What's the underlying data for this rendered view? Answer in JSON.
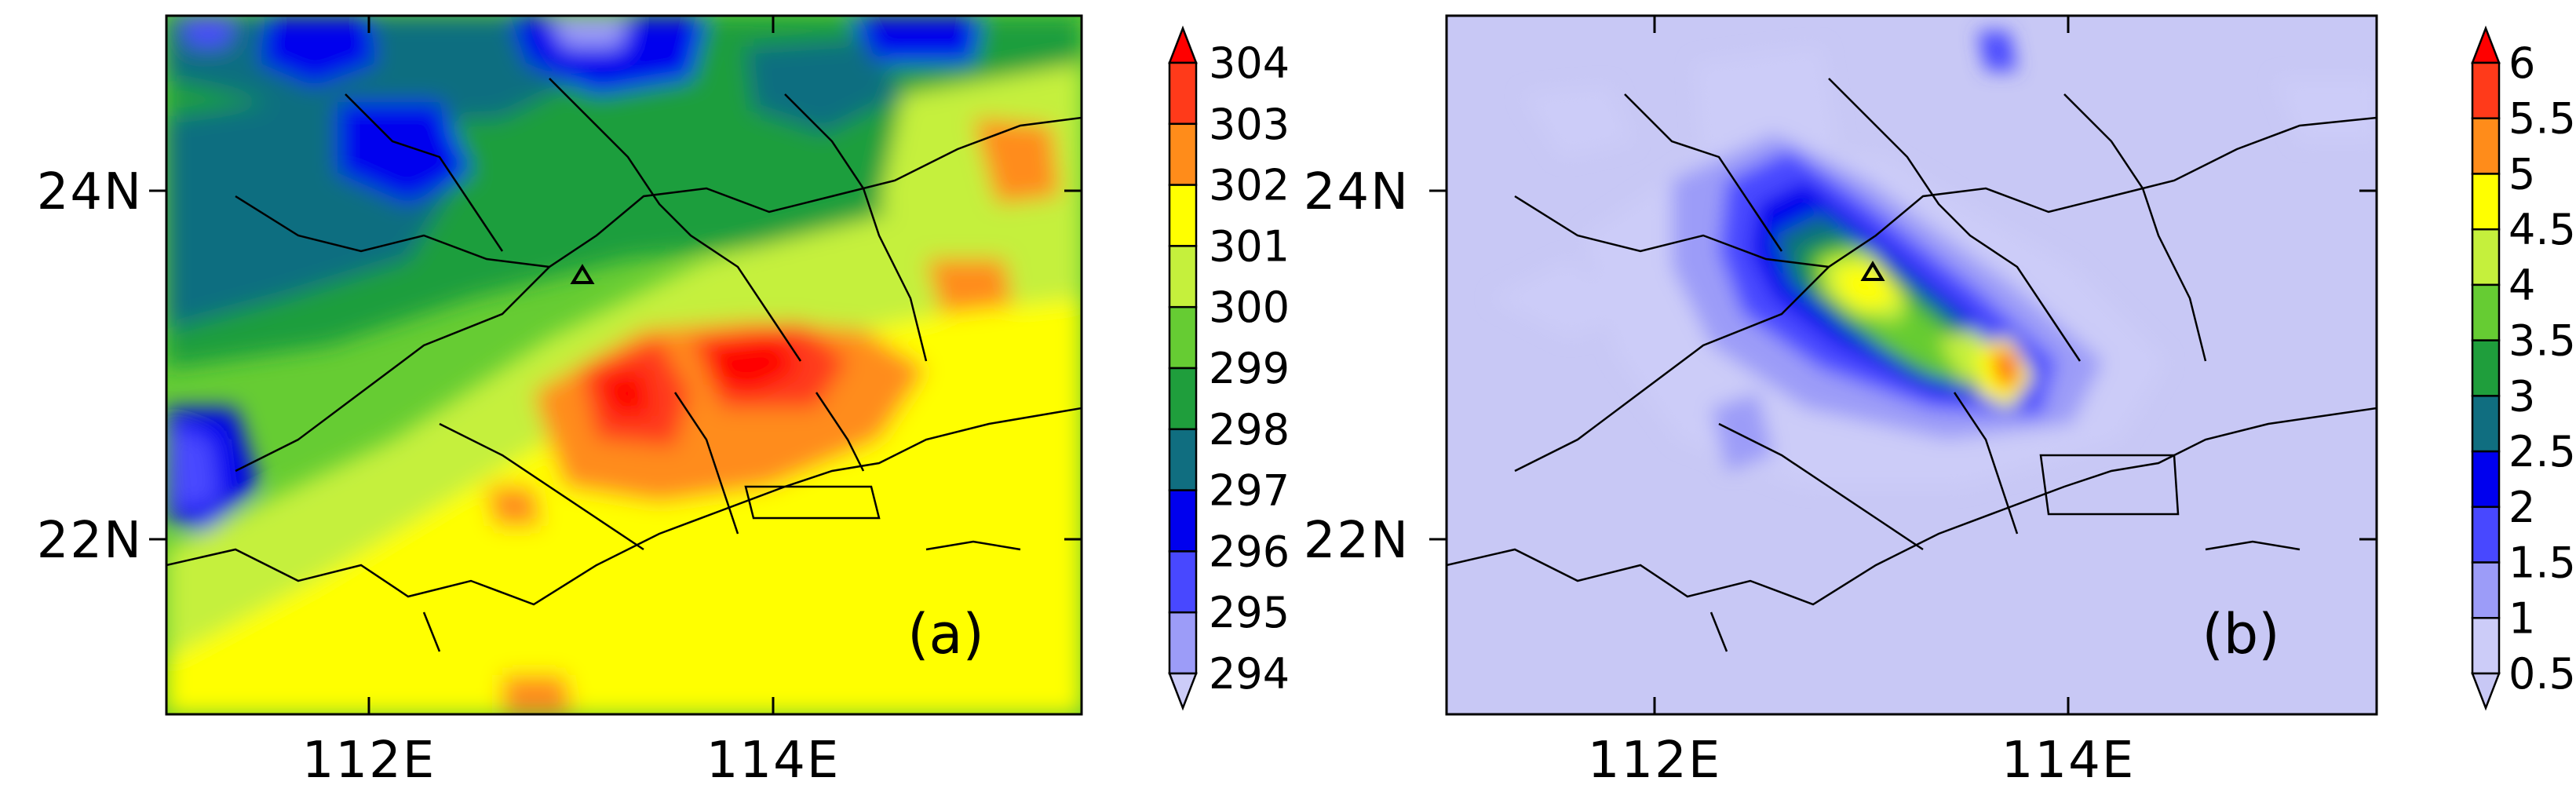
{
  "panels": [
    {
      "label": "(a)",
      "x_ticks": [
        "112E",
        "114E"
      ],
      "y_ticks": [
        "24N",
        "22N"
      ],
      "colorbar": {
        "levels": [
          "304",
          "303",
          "302",
          "301",
          "300",
          "299",
          "298",
          "297",
          "296",
          "295",
          "294"
        ],
        "colors": [
          "#ff0000",
          "#ff3a1a",
          "#ff8c1a",
          "#ffff00",
          "#c5f03c",
          "#66cc33",
          "#1f9e3c",
          "#106e80",
          "#0000ee",
          "#4848ff",
          "#9c9cf8",
          "#ccccf8"
        ]
      }
    },
    {
      "label": "(b)",
      "x_ticks": [
        "112E",
        "114E"
      ],
      "y_ticks": [
        "24N",
        "22N"
      ],
      "colorbar": {
        "levels": [
          "6",
          "5.5",
          "5",
          "4.5",
          "4",
          "3.5",
          "3",
          "2.5",
          "2",
          "1.5",
          "1",
          "0.5"
        ],
        "colors": [
          "#ff0000",
          "#ff3a1a",
          "#ff8c1a",
          "#ffff00",
          "#c5f03c",
          "#66cc33",
          "#1f9e3c",
          "#106e80",
          "#0000ee",
          "#4848ff",
          "#9c9cf8",
          "#ccccf8",
          "#c8c8f5"
        ]
      }
    }
  ]
}
